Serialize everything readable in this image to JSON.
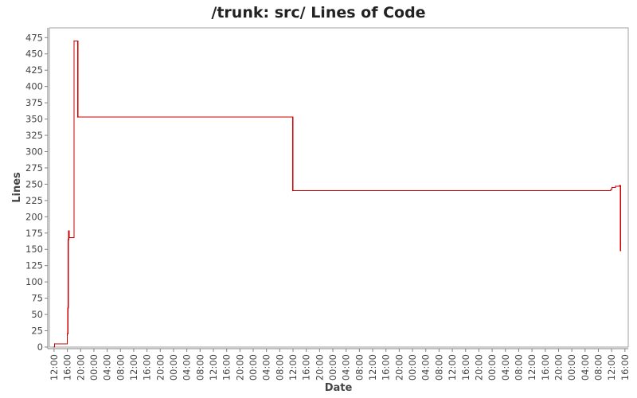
{
  "chart_data": {
    "type": "line",
    "title": "/trunk: src/ Lines of Code",
    "xlabel": "Date",
    "ylabel": "Lines",
    "ylim": [
      0,
      490
    ],
    "yticks": [
      0,
      25,
      50,
      75,
      100,
      125,
      150,
      175,
      200,
      225,
      250,
      275,
      300,
      325,
      350,
      375,
      400,
      425,
      450,
      475
    ],
    "xlim": [
      "2008-01-01T10:35",
      "2008-01-08T17:00"
    ],
    "xticks": [
      "2008-01-01T12:00",
      "2008-01-01T16:00",
      "2008-01-01T20:00",
      "2008-01-02T00:00",
      "2008-01-02T04:00",
      "2008-01-02T08:00",
      "2008-01-02T12:00",
      "2008-01-02T16:00",
      "2008-01-02T20:00",
      "2008-01-03T00:00",
      "2008-01-03T04:00",
      "2008-01-03T08:00",
      "2008-01-03T12:00",
      "2008-01-03T16:00",
      "2008-01-03T20:00",
      "2008-01-04T00:00",
      "2008-01-04T04:00",
      "2008-01-04T08:00",
      "2008-01-04T12:00",
      "2008-01-04T16:00",
      "2008-01-04T20:00",
      "2008-01-05T00:00",
      "2008-01-05T04:00",
      "2008-01-05T08:00",
      "2008-01-05T12:00",
      "2008-01-05T16:00",
      "2008-01-05T20:00",
      "2008-01-06T00:00",
      "2008-01-06T04:00",
      "2008-01-06T08:00",
      "2008-01-06T12:00",
      "2008-01-06T16:00",
      "2008-01-06T20:00",
      "2008-01-07T00:00",
      "2008-01-07T04:00",
      "2008-01-07T08:00",
      "2008-01-07T12:00",
      "2008-01-07T16:00",
      "2008-01-07T20:00",
      "2008-01-08T00:00",
      "2008-01-08T04:00",
      "2008-01-08T08:00",
      "2008-01-08T12:00",
      "2008-01-08T16:00"
    ],
    "xtick_labels": [
      "12:00",
      "16:00",
      "20:00",
      "00:00",
      "04:00",
      "08:00",
      "12:00",
      "16:00",
      "20:00",
      "00:00",
      "04:00",
      "08:00",
      "12:00",
      "16:00",
      "20:00",
      "00:00",
      "04:00",
      "08:00",
      "12:00",
      "16:00",
      "20:00",
      "00:00",
      "04:00",
      "08:00",
      "12:00",
      "16:00",
      "20:00",
      "00:00",
      "04:00",
      "08:00",
      "12:00",
      "16:00",
      "20:00",
      "00:00",
      "04:00",
      "08:00",
      "12:00",
      "16:00",
      "20:00",
      "00:00",
      "04:00",
      "08:00",
      "12:00",
      "16:00"
    ],
    "grid": false,
    "colors": {
      "line": "#cc0000",
      "axis": "#808080",
      "plot_border": "#a0a0a0",
      "text": "#444444",
      "title": "#222222"
    },
    "series": [
      {
        "step": true,
        "points": [
          [
            "2008-01-01T12:00",
            0
          ],
          [
            "2008-01-01T12:10",
            5
          ],
          [
            "2008-01-01T16:00",
            20
          ],
          [
            "2008-01-01T16:10",
            60
          ],
          [
            "2008-01-01T16:18",
            165
          ],
          [
            "2008-01-01T16:25",
            178
          ],
          [
            "2008-01-01T16:35",
            168
          ],
          [
            "2008-01-01T18:00",
            470
          ],
          [
            "2008-01-01T19:10",
            353
          ],
          [
            "2008-01-04T11:55",
            240
          ],
          [
            "2008-01-08T11:45",
            242
          ],
          [
            "2008-01-08T12:05",
            245
          ],
          [
            "2008-01-08T13:10",
            247
          ],
          [
            "2008-01-08T14:20",
            248
          ],
          [
            "2008-01-08T14:40",
            148
          ],
          [
            "2008-01-08T14:45",
            148
          ]
        ]
      }
    ]
  }
}
